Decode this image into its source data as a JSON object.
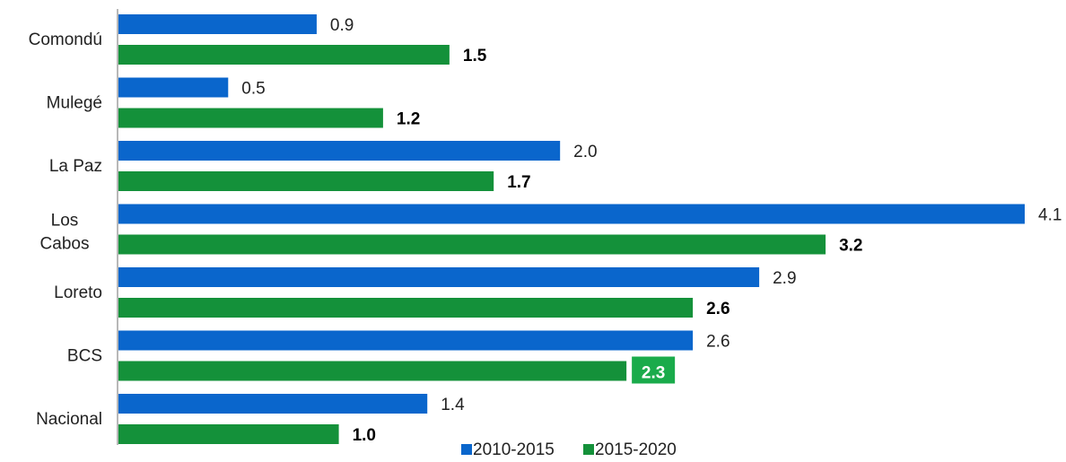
{
  "chart_data": {
    "type": "bar",
    "orientation": "horizontal",
    "categories": [
      "Comondú",
      "Mulegé",
      "La Paz",
      "Los Cabos",
      "Loreto",
      "BCS",
      "Nacional"
    ],
    "series": [
      {
        "name": "2010-2015",
        "color": "#0a66cc",
        "values": [
          0.9,
          0.5,
          2.0,
          4.1,
          2.9,
          2.6,
          1.4
        ],
        "labels": [
          "0.9",
          "0.5",
          "2.0",
          "4.1",
          "2.9",
          "2.6",
          "1.4"
        ]
      },
      {
        "name": "2015-2020",
        "color": "#14913a",
        "values": [
          1.5,
          1.2,
          1.7,
          3.2,
          2.6,
          2.3,
          1.0
        ],
        "labels": [
          "1.5",
          "1.2",
          "1.7",
          "3.2",
          "2.6",
          "2.3",
          "1.0"
        ]
      }
    ],
    "highlight": {
      "category": "BCS",
      "series": "2015-2020",
      "color": "#1aab4b"
    },
    "xlim": [
      0,
      4.1
    ],
    "grid": false,
    "legend": "bottom"
  }
}
